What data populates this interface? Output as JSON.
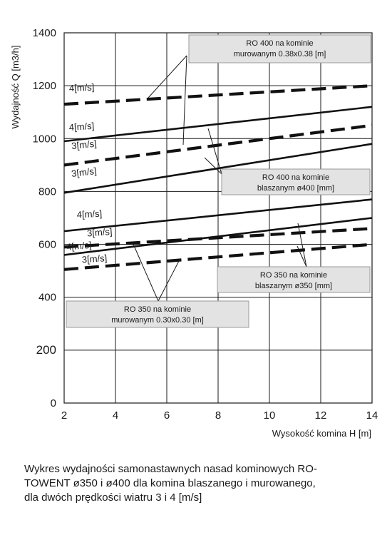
{
  "chart_data": {
    "type": "line",
    "xlabel": "Wysokość komina H [m]",
    "ylabel": "Wydajność Q [m3/h]",
    "xlim": [
      2,
      14
    ],
    "ylim": [
      0,
      1400
    ],
    "xticks": [
      "2",
      "4",
      "6",
      "8",
      "10",
      "12",
      "14"
    ],
    "yticks": [
      "0",
      "200",
      "400",
      "600",
      "800",
      "1000",
      "1200",
      "1400"
    ],
    "grid": true,
    "series": [
      {
        "name": "4[m/s]",
        "style": "dashed",
        "x": [
          2,
          14
        ],
        "y": [
          1130,
          1200
        ]
      },
      {
        "name": "4[m/s]",
        "style": "solid",
        "x": [
          2,
          14
        ],
        "y": [
          990,
          1120
        ]
      },
      {
        "name": "3[m/s]",
        "style": "dashed",
        "x": [
          2,
          14
        ],
        "y": [
          900,
          1050
        ]
      },
      {
        "name": "3[m/s]",
        "style": "solid",
        "x": [
          2,
          14
        ],
        "y": [
          795,
          980
        ]
      },
      {
        "name": "4[m/s]",
        "style": "solid",
        "x": [
          2,
          14
        ],
        "y": [
          650,
          770
        ]
      },
      {
        "name": "3[m/s]",
        "style": "dashed",
        "x": [
          2,
          14
        ],
        "y": [
          590,
          660
        ]
      },
      {
        "name": "4[m/s]",
        "style": "solid",
        "x": [
          2,
          14
        ],
        "y": [
          560,
          700
        ]
      },
      {
        "name": "3[m/s]",
        "style": "dashed",
        "x": [
          2,
          14
        ],
        "y": [
          505,
          600
        ]
      }
    ],
    "annotations": [
      {
        "lines": [
          "RO 400 na kominie",
          "murowanym 0.38x0.38 [m]"
        ],
        "series": [
          0,
          2
        ]
      },
      {
        "lines": [
          "RO 400 na kominie",
          "blaszanym ø400 [mm]"
        ],
        "series": [
          1,
          3
        ]
      },
      {
        "lines": [
          "RO 350 na kominie",
          "blaszanym ø350 [mm]"
        ],
        "series": [
          4,
          6
        ]
      },
      {
        "lines": [
          "RO 350 na kominie",
          "murowanym 0.30x0.30 [m]"
        ],
        "series": [
          5,
          7
        ]
      }
    ]
  },
  "caption": [
    "Wykres wydajności samonastawnych nasad kominowych RO-",
    "TOWENT ø350 i ø400 dla komina blaszanego i murowanego,",
    "dla dwóch prędkości wiatru 3 i 4 [m/s]"
  ]
}
